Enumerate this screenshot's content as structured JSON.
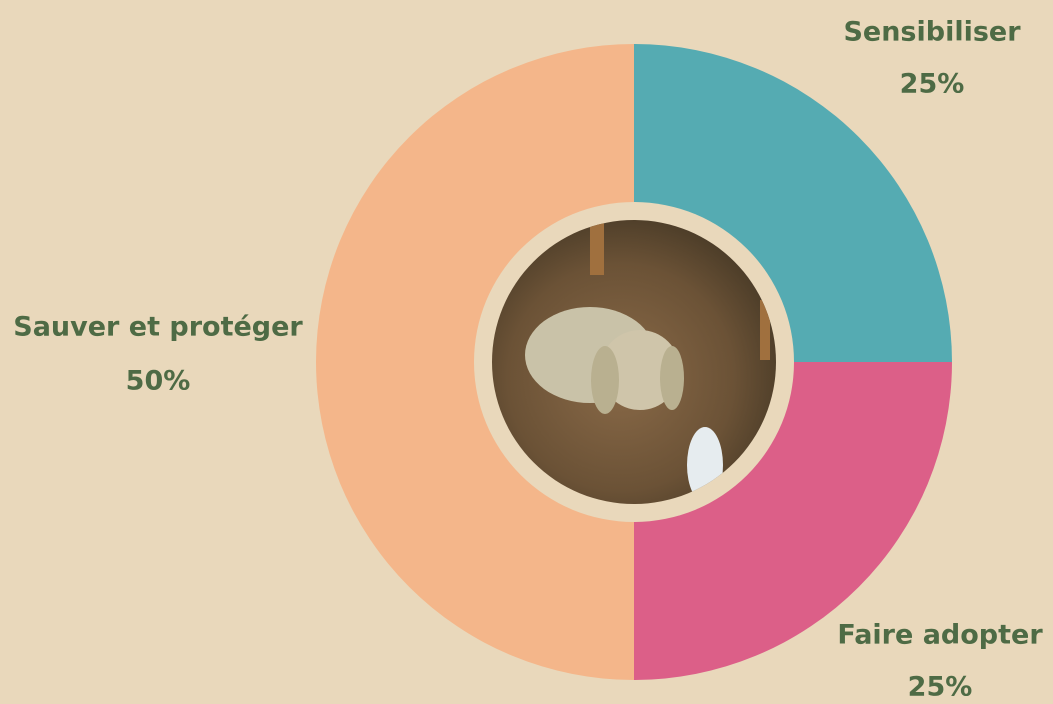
{
  "chart_data": {
    "type": "donut",
    "categories": [
      "Sensibiliser",
      "Faire adopter",
      "Sauver et protéger"
    ],
    "values": [
      25,
      25,
      50
    ],
    "value_labels": [
      "25%",
      "25%",
      "50%"
    ],
    "colors": [
      "#55abb2",
      "#dc5f88",
      "#f4b68a"
    ]
  }
}
